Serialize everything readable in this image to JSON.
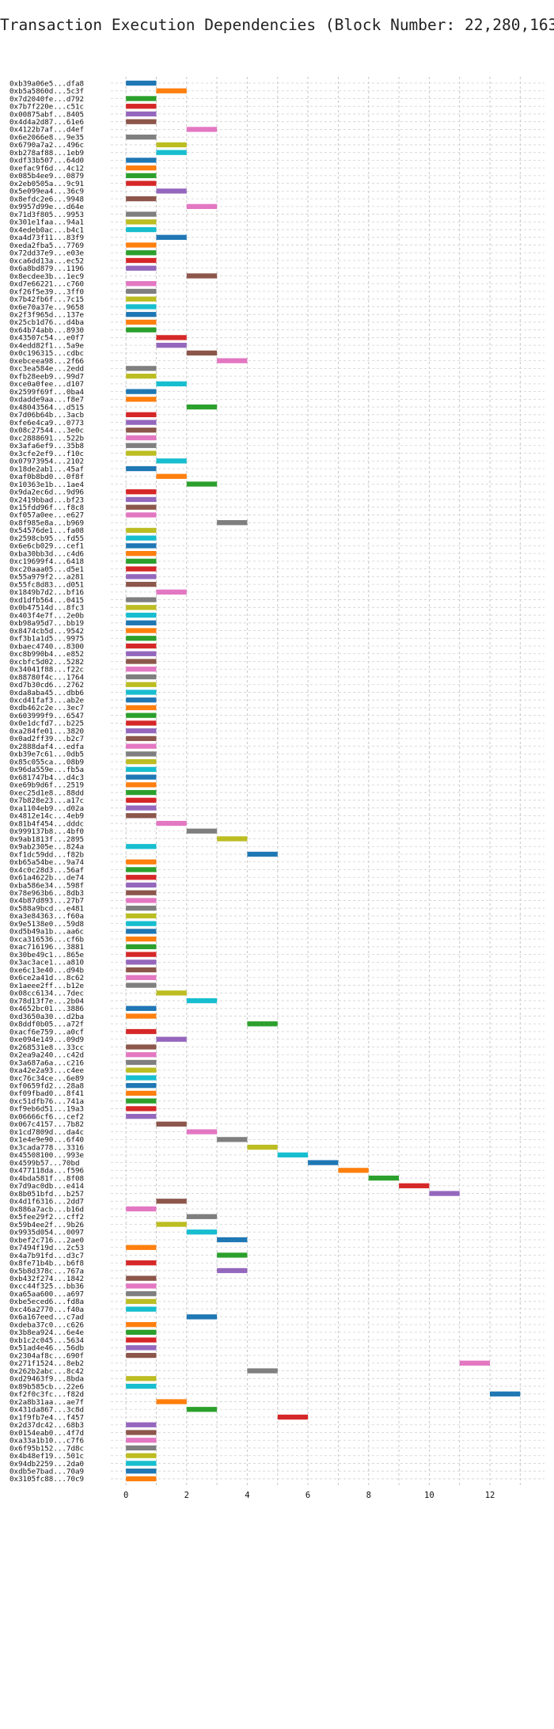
{
  "chart_data": {
    "type": "bar",
    "orientation": "horizontal",
    "title": "Transaction Execution Dependencies (Block Number: 22,280,163)",
    "xlabel": "",
    "ylabel": "",
    "xlim": [
      -0.5,
      13.8
    ],
    "xticks": [
      "0",
      "2",
      "4",
      "6",
      "8",
      "10",
      "12"
    ],
    "grid": true,
    "legend": "none",
    "bar_width_units": 1,
    "palette": {
      "blue": "#1f77b4",
      "orange": "#ff7f0e",
      "green": "#2ca02c",
      "red": "#d62728",
      "purple": "#9467bd",
      "brown": "#8c564b",
      "pink": "#e377c2",
      "gray": "#7f7f7f",
      "olive": "#bcbd22",
      "cyan": "#17becf"
    },
    "bars": [
      {
        "label": "0xb39a06e5...dfa8",
        "start": 0,
        "color": "blue"
      },
      {
        "label": "0xb5a5860d...5c3f",
        "start": 1,
        "color": "orange"
      },
      {
        "label": "0x7d2040fe...d792",
        "start": 0,
        "color": "green"
      },
      {
        "label": "0x7b7f220e...c51c",
        "start": 0,
        "color": "red"
      },
      {
        "label": "0x00875abf...8405",
        "start": 0,
        "color": "purple"
      },
      {
        "label": "0x4d4a2d87...61e6",
        "start": 0,
        "color": "brown"
      },
      {
        "label": "0x4122b7af...d4ef",
        "start": 2,
        "color": "pink"
      },
      {
        "label": "0x6e2066e8...9e35",
        "start": 0,
        "color": "gray"
      },
      {
        "label": "0x6790a7a2...496c",
        "start": 1,
        "color": "olive"
      },
      {
        "label": "0xb278af88...1eb9",
        "start": 1,
        "color": "cyan"
      },
      {
        "label": "0xdf33b507...64d0",
        "start": 0,
        "color": "blue"
      },
      {
        "label": "0xefac9f6d...4c12",
        "start": 0,
        "color": "orange"
      },
      {
        "label": "0x085b4ee9...0879",
        "start": 0,
        "color": "green"
      },
      {
        "label": "0x2eb0505a...9c91",
        "start": 0,
        "color": "red"
      },
      {
        "label": "0x5e099ea4...36c9",
        "start": 1,
        "color": "purple"
      },
      {
        "label": "0x8efdc2e6...9948",
        "start": 0,
        "color": "brown"
      },
      {
        "label": "0x9957d99e...d64e",
        "start": 2,
        "color": "pink"
      },
      {
        "label": "0x71d3f805...9953",
        "start": 0,
        "color": "gray"
      },
      {
        "label": "0x301e1faa...94a1",
        "start": 0,
        "color": "olive"
      },
      {
        "label": "0x4edeb0ac...b4c1",
        "start": 0,
        "color": "cyan"
      },
      {
        "label": "0xa4d73f11...83f9",
        "start": 1,
        "color": "blue"
      },
      {
        "label": "0xeda2fba5...7769",
        "start": 0,
        "color": "orange"
      },
      {
        "label": "0x72dd37e9...e03e",
        "start": 0,
        "color": "green"
      },
      {
        "label": "0xca6dd13a...ec52",
        "start": 0,
        "color": "red"
      },
      {
        "label": "0x6a8bd879...1196",
        "start": 0,
        "color": "purple"
      },
      {
        "label": "0x8ecdee3b...1ec9",
        "start": 2,
        "color": "brown"
      },
      {
        "label": "0xd7e66221...c760",
        "start": 0,
        "color": "pink"
      },
      {
        "label": "0xf26f5e39...3ff0",
        "start": 0,
        "color": "gray"
      },
      {
        "label": "0x7b42fb6f...7c15",
        "start": 0,
        "color": "olive"
      },
      {
        "label": "0x6e70a37e...9658",
        "start": 0,
        "color": "cyan"
      },
      {
        "label": "0x2f3f965d...137e",
        "start": 0,
        "color": "blue"
      },
      {
        "label": "0x25cb1d76...d4ba",
        "start": 0,
        "color": "orange"
      },
      {
        "label": "0x64b74abb...8930",
        "start": 0,
        "color": "green"
      },
      {
        "label": "0x43507c54...e0f7",
        "start": 1,
        "color": "red"
      },
      {
        "label": "0x4edd82f1...5a9e",
        "start": 1,
        "color": "purple"
      },
      {
        "label": "0x0c196315...cdbc",
        "start": 2,
        "color": "brown"
      },
      {
        "label": "0xebceea98...2f66",
        "start": 3,
        "color": "pink"
      },
      {
        "label": "0xc3ea584e...2edd",
        "start": 0,
        "color": "gray"
      },
      {
        "label": "0xfb28eeb9...99d7",
        "start": 0,
        "color": "olive"
      },
      {
        "label": "0xce0a0fee...d107",
        "start": 1,
        "color": "cyan"
      },
      {
        "label": "0x2599f69f...0ba4",
        "start": 0,
        "color": "blue"
      },
      {
        "label": "0xdadde9aa...f8e7",
        "start": 0,
        "color": "orange"
      },
      {
        "label": "0x48043564...d515",
        "start": 2,
        "color": "green"
      },
      {
        "label": "0x7d06b64b...3acb",
        "start": 0,
        "color": "red"
      },
      {
        "label": "0xfe6e4ca9...0773",
        "start": 0,
        "color": "purple"
      },
      {
        "label": "0x08c27544...3e0c",
        "start": 0,
        "color": "brown"
      },
      {
        "label": "0xc2888691...522b",
        "start": 0,
        "color": "pink"
      },
      {
        "label": "0x3afa6ef9...35b8",
        "start": 0,
        "color": "gray"
      },
      {
        "label": "0x3cfe2ef9...f10c",
        "start": 0,
        "color": "olive"
      },
      {
        "label": "0x07973954...2102",
        "start": 1,
        "color": "cyan"
      },
      {
        "label": "0x18de2ab1...45af",
        "start": 0,
        "color": "blue"
      },
      {
        "label": "0xaf0b8bd0...0f8f",
        "start": 1,
        "color": "orange"
      },
      {
        "label": "0x10363e1b...1ae4",
        "start": 2,
        "color": "green"
      },
      {
        "label": "0x9da2ec6d...9d96",
        "start": 0,
        "color": "red"
      },
      {
        "label": "0x2419bbad...bf23",
        "start": 0,
        "color": "purple"
      },
      {
        "label": "0x15fdd96f...f8c8",
        "start": 0,
        "color": "brown"
      },
      {
        "label": "0xf057a0ee...e627",
        "start": 0,
        "color": "pink"
      },
      {
        "label": "0x8f985e8a...b969",
        "start": 3,
        "color": "gray"
      },
      {
        "label": "0x54576de1...fa08",
        "start": 0,
        "color": "olive"
      },
      {
        "label": "0x2598cb95...fd55",
        "start": 0,
        "color": "cyan"
      },
      {
        "label": "0x6e6cb029...cef1",
        "start": 0,
        "color": "blue"
      },
      {
        "label": "0xba30bb3d...c4d6",
        "start": 0,
        "color": "orange"
      },
      {
        "label": "0xc19699f4...6418",
        "start": 0,
        "color": "green"
      },
      {
        "label": "0xc20aaa05...d5e1",
        "start": 0,
        "color": "red"
      },
      {
        "label": "0x55a979f2...a281",
        "start": 0,
        "color": "purple"
      },
      {
        "label": "0x55fc8d83...d051",
        "start": 0,
        "color": "brown"
      },
      {
        "label": "0x1849b7d2...bf16",
        "start": 1,
        "color": "pink"
      },
      {
        "label": "0xd1dfb564...0415",
        "start": 0,
        "color": "gray"
      },
      {
        "label": "0x0b47514d...8fc3",
        "start": 0,
        "color": "olive"
      },
      {
        "label": "0x403f4e7f...2e0b",
        "start": 0,
        "color": "cyan"
      },
      {
        "label": "0xb98a95d7...bb19",
        "start": 0,
        "color": "blue"
      },
      {
        "label": "0x8474cb5d...9542",
        "start": 0,
        "color": "orange"
      },
      {
        "label": "0xf3b1a1d5...9975",
        "start": 0,
        "color": "green"
      },
      {
        "label": "0xbaec4740...8300",
        "start": 0,
        "color": "red"
      },
      {
        "label": "0xc8b990b4...e852",
        "start": 0,
        "color": "purple"
      },
      {
        "label": "0xcbfc5d02...5282",
        "start": 0,
        "color": "brown"
      },
      {
        "label": "0x34041f88...f22c",
        "start": 0,
        "color": "pink"
      },
      {
        "label": "0x88780f4c...1764",
        "start": 0,
        "color": "gray"
      },
      {
        "label": "0xd7b30cd6...2762",
        "start": 0,
        "color": "olive"
      },
      {
        "label": "0xda8aba45...dbb6",
        "start": 0,
        "color": "cyan"
      },
      {
        "label": "0xcd41faf3...ab2e",
        "start": 0,
        "color": "blue"
      },
      {
        "label": "0xdb462c2e...3ec7",
        "start": 0,
        "color": "orange"
      },
      {
        "label": "0x603999f9...6547",
        "start": 0,
        "color": "green"
      },
      {
        "label": "0x0e1dcfd7...b225",
        "start": 0,
        "color": "red"
      },
      {
        "label": "0xa284fe01...3820",
        "start": 0,
        "color": "purple"
      },
      {
        "label": "0x0ad2ff39...b2c7",
        "start": 0,
        "color": "brown"
      },
      {
        "label": "0x2888daf4...edfa",
        "start": 0,
        "color": "pink"
      },
      {
        "label": "0xb39e7c61...0db5",
        "start": 0,
        "color": "gray"
      },
      {
        "label": "0x85c055ca...08b9",
        "start": 0,
        "color": "olive"
      },
      {
        "label": "0x96da559e...fb5a",
        "start": 0,
        "color": "cyan"
      },
      {
        "label": "0x681747b4...d4c3",
        "start": 0,
        "color": "blue"
      },
      {
        "label": "0xe69b9d6f...2519",
        "start": 0,
        "color": "orange"
      },
      {
        "label": "0xec25d1e8...88dd",
        "start": 0,
        "color": "green"
      },
      {
        "label": "0x7b828e23...a17c",
        "start": 0,
        "color": "red"
      },
      {
        "label": "0xa1104eb9...d02a",
        "start": 0,
        "color": "purple"
      },
      {
        "label": "0x4812e14c...4eb9",
        "start": 0,
        "color": "brown"
      },
      {
        "label": "0x81b4f454...dddc",
        "start": 1,
        "color": "pink"
      },
      {
        "label": "0x999137b8...4bf0",
        "start": 2,
        "color": "gray"
      },
      {
        "label": "0x9ab1813f...2895",
        "start": 3,
        "color": "olive"
      },
      {
        "label": "0x9ab2305e...824a",
        "start": 0,
        "color": "cyan"
      },
      {
        "label": "0xf1dc59dd...f82b",
        "start": 4,
        "color": "blue"
      },
      {
        "label": "0xb65a54be...9a74",
        "start": 0,
        "color": "orange"
      },
      {
        "label": "0x4c0c28d3...56af",
        "start": 0,
        "color": "green"
      },
      {
        "label": "0x61a4622b...de74",
        "start": 0,
        "color": "red"
      },
      {
        "label": "0xba586e34...598f",
        "start": 0,
        "color": "purple"
      },
      {
        "label": "0x78e963b6...8db3",
        "start": 0,
        "color": "brown"
      },
      {
        "label": "0x4b87d893...27b7",
        "start": 0,
        "color": "pink"
      },
      {
        "label": "0x588a9bcd...e481",
        "start": 0,
        "color": "gray"
      },
      {
        "label": "0xa3e84363...f60a",
        "start": 0,
        "color": "olive"
      },
      {
        "label": "0x9e5138e0...59d8",
        "start": 0,
        "color": "cyan"
      },
      {
        "label": "0xd5b49a1b...aa6c",
        "start": 0,
        "color": "blue"
      },
      {
        "label": "0xca316536...cf6b",
        "start": 0,
        "color": "orange"
      },
      {
        "label": "0xac716196...3881",
        "start": 0,
        "color": "green"
      },
      {
        "label": "0x30be49c1...865e",
        "start": 0,
        "color": "red"
      },
      {
        "label": "0x3ac3ace1...a810",
        "start": 0,
        "color": "purple"
      },
      {
        "label": "0xe6c13e40...d94b",
        "start": 0,
        "color": "brown"
      },
      {
        "label": "0x6ce2a41d...8c62",
        "start": 0,
        "color": "pink"
      },
      {
        "label": "0x1aeee2ff...b12e",
        "start": 0,
        "color": "gray"
      },
      {
        "label": "0x08cc6134...7dec",
        "start": 1,
        "color": "olive"
      },
      {
        "label": "0x78d13f7e...2b04",
        "start": 2,
        "color": "cyan"
      },
      {
        "label": "0x4652bc01...3886",
        "start": 0,
        "color": "blue"
      },
      {
        "label": "0xd3650a30...d2ba",
        "start": 0,
        "color": "orange"
      },
      {
        "label": "0x8ddf0b05...a72f",
        "start": 4,
        "color": "green"
      },
      {
        "label": "0xacf6e759...a0cf",
        "start": 0,
        "color": "red"
      },
      {
        "label": "0xe094e149...09d9",
        "start": 1,
        "color": "purple"
      },
      {
        "label": "0x268531e8...33cc",
        "start": 0,
        "color": "brown"
      },
      {
        "label": "0x2ea9a240...c42d",
        "start": 0,
        "color": "pink"
      },
      {
        "label": "0x3a687a6a...c216",
        "start": 0,
        "color": "gray"
      },
      {
        "label": "0xa42e2a93...c4ee",
        "start": 0,
        "color": "olive"
      },
      {
        "label": "0xc76c34ce...6e89",
        "start": 0,
        "color": "cyan"
      },
      {
        "label": "0xf0659fd2...28a8",
        "start": 0,
        "color": "blue"
      },
      {
        "label": "0xf09fbad0...8f41",
        "start": 0,
        "color": "orange"
      },
      {
        "label": "0xc51dfb76...741a",
        "start": 0,
        "color": "green"
      },
      {
        "label": "0xf9eb6d51...19a3",
        "start": 0,
        "color": "red"
      },
      {
        "label": "0x06666cf6...cef2",
        "start": 0,
        "color": "purple"
      },
      {
        "label": "0x067c4157...7b82",
        "start": 1,
        "color": "brown"
      },
      {
        "label": "0x1cd7809d...da4c",
        "start": 2,
        "color": "pink"
      },
      {
        "label": "0x1e4e9e90...6f40",
        "start": 3,
        "color": "gray"
      },
      {
        "label": "0x3cada778...3316",
        "start": 4,
        "color": "olive"
      },
      {
        "label": "0x45508100...993e",
        "start": 5,
        "color": "cyan"
      },
      {
        "label": "0x4599b57...70bd",
        "start": 6,
        "color": "blue"
      },
      {
        "label": "0x477118da...f596",
        "start": 7,
        "color": "orange"
      },
      {
        "label": "0x4bda581f...8f08",
        "start": 8,
        "color": "green"
      },
      {
        "label": "0x7d9ac0db...e414",
        "start": 9,
        "color": "red"
      },
      {
        "label": "0x8b051bfd...b257",
        "start": 10,
        "color": "purple"
      },
      {
        "label": "0x4d1f6316...2dd7",
        "start": 1,
        "color": "brown"
      },
      {
        "label": "0x886a7acb...b16d",
        "start": 0,
        "color": "pink"
      },
      {
        "label": "0x5fee29f2...cff2",
        "start": 2,
        "color": "gray"
      },
      {
        "label": "0x59b4ee2f...9b26",
        "start": 1,
        "color": "olive"
      },
      {
        "label": "0x9935d054...0097",
        "start": 2,
        "color": "cyan"
      },
      {
        "label": "0xbef2c716...2ae0",
        "start": 3,
        "color": "blue"
      },
      {
        "label": "0x7494f19d...2c53",
        "start": 0,
        "color": "orange"
      },
      {
        "label": "0x4a7b91fd...d3c7",
        "start": 3,
        "color": "green"
      },
      {
        "label": "0x8fe71b4b...b6f8",
        "start": 0,
        "color": "red"
      },
      {
        "label": "0x5b8d378c...767a",
        "start": 3,
        "color": "purple"
      },
      {
        "label": "0xb432f274...1842",
        "start": 0,
        "color": "brown"
      },
      {
        "label": "0xcc44f325...bb36",
        "start": 0,
        "color": "pink"
      },
      {
        "label": "0xa65aa600...a697",
        "start": 0,
        "color": "gray"
      },
      {
        "label": "0xbe5eced6...fd8a",
        "start": 0,
        "color": "olive"
      },
      {
        "label": "0xc46a2770...f40a",
        "start": 0,
        "color": "cyan"
      },
      {
        "label": "0x6a167eed...c7ad",
        "start": 2,
        "color": "blue"
      },
      {
        "label": "0xdeba37c0...c626",
        "start": 0,
        "color": "orange"
      },
      {
        "label": "0x3b8ea924...6e4e",
        "start": 0,
        "color": "green"
      },
      {
        "label": "0xb1c2c045...5634",
        "start": 0,
        "color": "red"
      },
      {
        "label": "0x51ad4e46...56db",
        "start": 0,
        "color": "purple"
      },
      {
        "label": "0x2304af8c...690f",
        "start": 0,
        "color": "brown"
      },
      {
        "label": "0x271f1524...8eb2",
        "start": 11,
        "color": "pink"
      },
      {
        "label": "0x262b2abc...8c42",
        "start": 4,
        "color": "gray"
      },
      {
        "label": "0xd29463f9...8bda",
        "start": 0,
        "color": "olive"
      },
      {
        "label": "0x89b585cb...22e6",
        "start": 0,
        "color": "cyan"
      },
      {
        "label": "0xf2f0c3fc...f82d",
        "start": 12,
        "color": "blue"
      },
      {
        "label": "0x2a8b31aa...ae7f",
        "start": 1,
        "color": "orange"
      },
      {
        "label": "0x431da867...3c8d",
        "start": 2,
        "color": "green"
      },
      {
        "label": "0x1f9fb7e4...f457",
        "start": 5,
        "color": "red"
      },
      {
        "label": "0x2d37dc42...68b3",
        "start": 0,
        "color": "purple"
      },
      {
        "label": "0x0154eab0...4f7d",
        "start": 0,
        "color": "brown"
      },
      {
        "label": "0xa33a1b10...c7f6",
        "start": 0,
        "color": "pink"
      },
      {
        "label": "0x6f95b152...7d8c",
        "start": 0,
        "color": "gray"
      },
      {
        "label": "0x4b48ef19...501c",
        "start": 0,
        "color": "olive"
      },
      {
        "label": "0x94db2259...2da0",
        "start": 0,
        "color": "cyan"
      },
      {
        "label": "0xdb5e7bad...70a9",
        "start": 0,
        "color": "blue"
      },
      {
        "label": "0x3105fc88...70c9",
        "start": 0,
        "color": "orange"
      }
    ]
  }
}
